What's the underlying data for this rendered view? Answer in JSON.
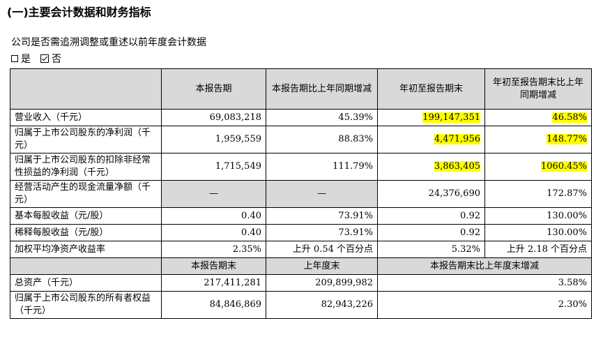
{
  "section_title": "(一)主要会计数据和财务指标",
  "question": "公司是否需追溯调整或重述以前年度会计数据",
  "choices": {
    "yes": "是",
    "no": "否"
  },
  "header1": [
    "本报告期",
    "本报告期比上年同期增减",
    "年初至报告期末",
    "年初至报告期末比上年同期增减"
  ],
  "rows1": [
    {
      "label": "营业收入（千元）",
      "c1": "69,083,218",
      "c2": "45.39%",
      "c3": "199,147,351",
      "c4": "46.58%"
    },
    {
      "label": "归属于上市公司股东的净利润（千元）",
      "c1": "1,959,559",
      "c2": "88.83%",
      "c3": "4,471,956",
      "c4": "148.77%"
    },
    {
      "label": "归属于上市公司股东的扣除非经常性损益的净利润（千元）",
      "c1": "1,715,549",
      "c2": "111.79%",
      "c3": "3,863,405",
      "c4": "1060.45%"
    },
    {
      "label": "经营活动产生的现金流量净额（千元）",
      "c1": "—",
      "c2": "—",
      "c3": "24,376,690",
      "c4": "172.87%"
    },
    {
      "label": "基本每股收益（元/股）",
      "c1": "0.40",
      "c2": "73.91%",
      "c3": "0.92",
      "c4": "130.00%"
    },
    {
      "label": "稀释每股收益（元/股）",
      "c1": "0.40",
      "c2": "73.91%",
      "c3": "0.92",
      "c4": "130.00%"
    },
    {
      "label": "加权平均净资产收益率",
      "c1": "2.35%",
      "c2": "上升 0.54 个百分点",
      "c3": "5.32%",
      "c4": "上升 2.18 个百分点"
    }
  ],
  "header2": [
    "本报告期末",
    "上年度末",
    "本报告期末比上年度末增减"
  ],
  "rows2": [
    {
      "label": "总资产（千元）",
      "c1": "217,411,281",
      "c2": "209,899,982",
      "c3": "3.58%"
    },
    {
      "label": "归属于上市公司股东的所有者权益（千元）",
      "c1": "84,846,869",
      "c2": "82,943,226",
      "c3": "2.30%"
    }
  ],
  "highlight_color": "#ffff00",
  "header_bg": "#d9d9d9"
}
